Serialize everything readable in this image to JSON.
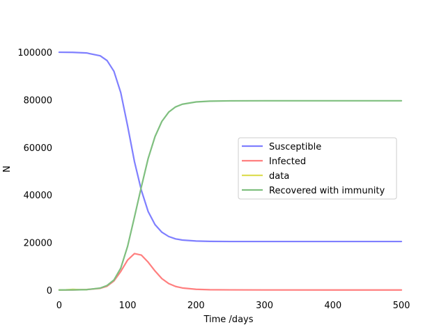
{
  "chart_data": {
    "type": "line",
    "title": "",
    "xlabel": "Time /days",
    "ylabel": "N",
    "xlim": [
      -5,
      500
    ],
    "ylim": [
      -3000,
      105000
    ],
    "xticks": [
      0,
      100,
      200,
      300,
      400,
      500
    ],
    "xtick_labels": [
      "0",
      "100",
      "200",
      "300",
      "400",
      "500"
    ],
    "yticks": [
      0,
      20000,
      40000,
      60000,
      80000,
      100000
    ],
    "ytick_labels": [
      "0",
      "20000",
      "40000",
      "60000",
      "80000",
      "100000"
    ],
    "grid": false,
    "legend_position": "center-right",
    "x": [
      0,
      20,
      40,
      60,
      70,
      80,
      90,
      100,
      110,
      120,
      130,
      140,
      150,
      160,
      170,
      180,
      200,
      220,
      250,
      300,
      400,
      500
    ],
    "series": [
      {
        "name": "Susceptible",
        "color": "#7f7fff",
        "values": [
          100000,
          99950,
          99700,
          98500,
          96500,
          92000,
          83000,
          69000,
          54000,
          42000,
          33000,
          27500,
          24300,
          22500,
          21500,
          21000,
          20600,
          20450,
          20400,
          20400,
          20400,
          20400
        ]
      },
      {
        "name": "Infected",
        "color": "#ff7f7f",
        "values": [
          10,
          40,
          180,
          700,
          1600,
          3800,
          7800,
          12600,
          15300,
          14700,
          11700,
          8000,
          4800,
          2700,
          1500,
          850,
          300,
          120,
          50,
          15,
          5,
          5
        ]
      },
      {
        "name": "data",
        "color": "#dddd55",
        "x": [
          0,
          5,
          10,
          15,
          20,
          25,
          30,
          35,
          40
        ],
        "values": [
          0,
          50,
          80,
          150,
          250,
          180,
          120,
          100,
          150
        ]
      },
      {
        "name": "Recovered with immunity",
        "color": "#7fbf7f",
        "values": [
          0,
          30,
          150,
          800,
          1900,
          4200,
          9200,
          18400,
          30700,
          43300,
          55300,
          64500,
          70900,
          74800,
          77000,
          78150,
          79100,
          79430,
          79550,
          79585,
          79595,
          79595
        ]
      }
    ]
  }
}
